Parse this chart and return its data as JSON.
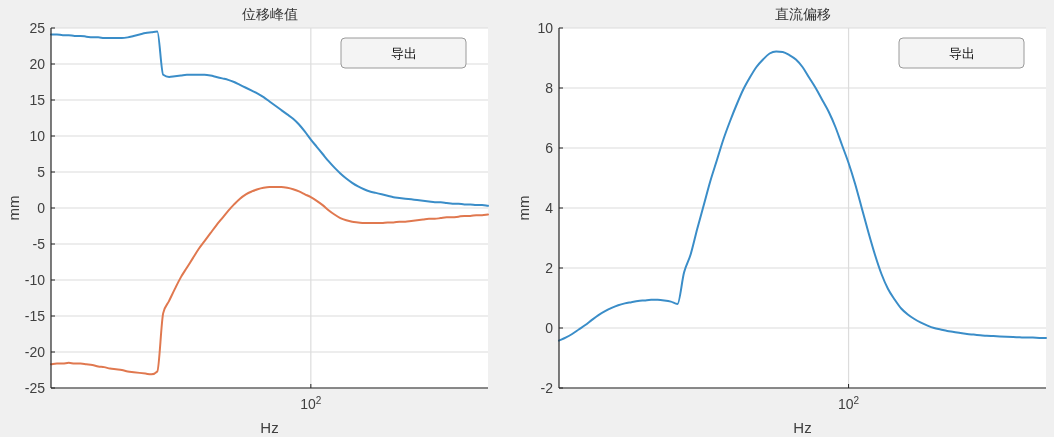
{
  "chart_data": [
    {
      "type": "line",
      "title": "位移峰值",
      "xlabel": "Hz",
      "ylabel": "mm",
      "categories": [
        null,
        null,
        null,
        null,
        null,
        null,
        null,
        null,
        null,
        null,
        null,
        null,
        null,
        null,
        null,
        null,
        null,
        null,
        null,
        null,
        null,
        null,
        null,
        null,
        null,
        null,
        null,
        null,
        null,
        null,
        null,
        null,
        null,
        null,
        null,
        null,
        null,
        null,
        null,
        null,
        null,
        null,
        null,
        null,
        "10$^{2}$",
        null,
        null,
        null,
        null,
        null,
        null,
        null,
        null,
        null,
        null,
        null,
        null,
        null,
        null,
        null,
        null,
        null,
        null,
        null,
        null,
        null,
        null,
        null,
        null,
        null,
        null,
        null,
        null,
        null,
        null
      ],
      "ylim": [
        -25,
        25
      ],
      "yticks": [
        -25,
        -20,
        -15,
        -10,
        -5,
        0,
        5,
        10,
        15,
        20,
        25
      ],
      "grid": true,
      "annotations": [
        "导出"
      ],
      "series": [
        {
          "color": "#3a8dc8",
          "values": [
            24.1,
            24.1,
            24.0,
            24.0,
            23.9,
            23.9,
            23.8,
            23.7,
            23.7,
            23.6,
            23.6,
            23.6,
            23.6,
            23.7,
            23.9,
            24.1,
            24.3,
            24.4,
            24.5,
            18.5,
            18.2,
            18.3,
            18.4,
            18.5,
            18.5,
            18.5,
            18.5,
            18.4,
            18.2,
            18.0,
            17.8,
            17.5,
            17.1,
            16.7,
            16.3,
            15.9,
            15.4,
            14.8,
            14.2,
            13.6,
            13.0,
            12.4,
            11.6,
            10.6,
            9.5,
            8.5,
            7.5,
            6.5,
            5.6,
            4.8,
            4.1,
            3.5,
            3.0,
            2.6,
            2.3,
            2.1,
            1.9,
            1.7,
            1.5,
            1.4,
            1.3,
            1.2,
            1.1,
            1.0,
            0.9,
            0.8,
            0.8,
            0.7,
            0.6,
            0.6,
            0.5,
            0.5,
            0.4,
            0.4,
            0.3
          ]
        },
        {
          "color": "#e0784f",
          "values": [
            -21.7,
            -21.6,
            -21.6,
            -21.5,
            -21.6,
            -21.6,
            -21.7,
            -21.8,
            -22.0,
            -22.1,
            -22.3,
            -22.4,
            -22.5,
            -22.7,
            -22.8,
            -22.9,
            -23.0,
            -23.1,
            -22.7,
            -14.6,
            -12.9,
            -11.2,
            -9.6,
            -8.3,
            -7.0,
            -5.7,
            -4.6,
            -3.5,
            -2.4,
            -1.4,
            -0.4,
            0.5,
            1.3,
            1.9,
            2.3,
            2.6,
            2.8,
            2.9,
            2.9,
            2.9,
            2.8,
            2.6,
            2.3,
            1.9,
            1.5,
            1.0,
            0.4,
            -0.3,
            -0.9,
            -1.4,
            -1.7,
            -1.9,
            -2.0,
            -2.1,
            -2.1,
            -2.1,
            -2.1,
            -2.0,
            -2.0,
            -1.9,
            -1.9,
            -1.8,
            -1.7,
            -1.6,
            -1.5,
            -1.5,
            -1.4,
            -1.3,
            -1.3,
            -1.2,
            -1.1,
            -1.1,
            -1.0,
            -1.0,
            -0.9
          ]
        }
      ]
    },
    {
      "type": "line",
      "title": "直流偏移",
      "xlabel": "Hz",
      "ylabel": "mm",
      "categories": [
        null,
        null,
        null,
        null,
        null,
        null,
        null,
        null,
        null,
        null,
        null,
        null,
        null,
        null,
        null,
        null,
        null,
        null,
        null,
        null,
        null,
        null,
        null,
        null,
        null,
        null,
        null,
        null,
        null,
        null,
        null,
        null,
        null,
        null,
        null,
        null,
        null,
        null,
        null,
        null,
        null,
        null,
        null,
        null,
        "10$^{2}$",
        null,
        null,
        null,
        null,
        null,
        null,
        null,
        null,
        null,
        null,
        null,
        null,
        null,
        null,
        null,
        null,
        null,
        null,
        null,
        null,
        null,
        null,
        null,
        null,
        null,
        null,
        null,
        null,
        null,
        null
      ],
      "ylim": [
        -2,
        10
      ],
      "yticks": [
        -2,
        0,
        2,
        4,
        6,
        8,
        10
      ],
      "grid": true,
      "annotations": [
        "导出"
      ],
      "series": [
        {
          "color": "#3a8dc8",
          "values": [
            -0.42,
            -0.32,
            -0.2,
            -0.05,
            0.1,
            0.27,
            0.43,
            0.56,
            0.67,
            0.76,
            0.82,
            0.86,
            0.9,
            0.92,
            0.94,
            0.94,
            0.92,
            0.88,
            0.8,
            1.85,
            2.45,
            3.3,
            4.1,
            4.9,
            5.6,
            6.3,
            6.9,
            7.45,
            7.95,
            8.35,
            8.7,
            8.95,
            9.15,
            9.22,
            9.2,
            9.1,
            8.95,
            8.7,
            8.35,
            8.0,
            7.6,
            7.2,
            6.7,
            6.1,
            5.5,
            4.8,
            4.0,
            3.2,
            2.45,
            1.8,
            1.3,
            0.95,
            0.65,
            0.45,
            0.3,
            0.18,
            0.08,
            0.0,
            -0.05,
            -0.1,
            -0.13,
            -0.17,
            -0.2,
            -0.22,
            -0.24,
            -0.26,
            -0.27,
            -0.28,
            -0.29,
            -0.3,
            -0.31,
            -0.32,
            -0.32,
            -0.33,
            -0.33
          ]
        }
      ]
    }
  ]
}
